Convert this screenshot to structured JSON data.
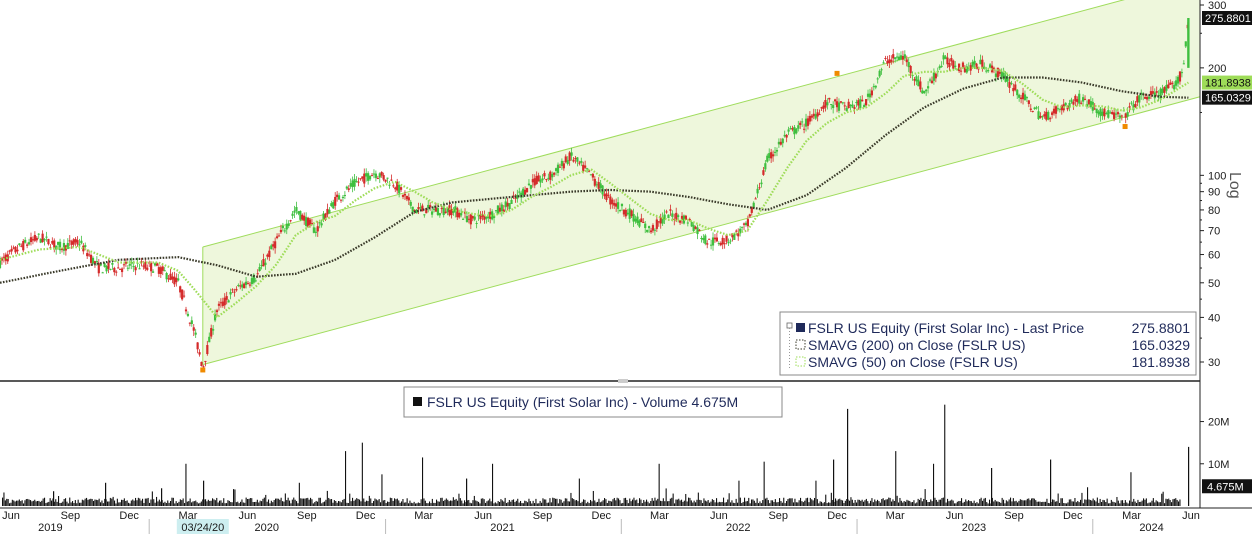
{
  "colors": {
    "channel_fill": "#eef7dc",
    "channel_line": "#9fdc5c",
    "up_candle": "#3fbf3f",
    "down_candle": "#d42a2a",
    "sma200": "#3a3a2a",
    "sma50": "#9edc58",
    "volume": "#111111",
    "axis": "#222222"
  },
  "scale_label": "Log",
  "price_badges": [
    {
      "value": "275.8801",
      "bg": "#111111",
      "fg": "#ffffff",
      "y": 275.8801
    },
    {
      "value": "181.8938",
      "bg": "#9edc58",
      "fg": "#111111",
      "y": 181.8938
    },
    {
      "value": "165.0329",
      "bg": "#111111",
      "fg": "#ffffff",
      "y": 165.0329
    }
  ],
  "volume_badge": {
    "value": "4.675M",
    "bg": "#111111",
    "fg": "#ffffff"
  },
  "highlight_date": "03/24/20",
  "legend": {
    "items": [
      {
        "label": "FSLR US Equity (First Solar Inc) - Last Price",
        "value": "275.8801"
      },
      {
        "label": "SMAVG (200)  on Close (FSLR US)",
        "value": "165.0329"
      },
      {
        "label": "SMAVG (50)  on Close (FSLR US)",
        "value": "181.8938"
      }
    ]
  },
  "volume_legend": {
    "label": "FSLR US Equity (First Solar Inc) - Volume 4.675M"
  },
  "chart_data": {
    "type": "candlestick",
    "scale": "log",
    "x_range": [
      "2019-05-15",
      "2024-06-15"
    ],
    "ylim": [
      27,
      300
    ],
    "price_ticks": [
      30,
      40,
      50,
      60,
      70,
      80,
      90,
      100,
      200,
      300
    ],
    "volume_ticks": [
      {
        "value": 10,
        "label": "10M"
      },
      {
        "value": 20,
        "label": "20M"
      }
    ],
    "volume_ylim": [
      0,
      27
    ],
    "month_ticks": [
      {
        "date": "2019-06-01",
        "label": "Jun"
      },
      {
        "date": "2019-09-01",
        "label": "Sep"
      },
      {
        "date": "2019-12-01",
        "label": "Dec"
      },
      {
        "date": "2020-03-01",
        "label": "Mar"
      },
      {
        "date": "2020-06-01",
        "label": "Jun"
      },
      {
        "date": "2020-09-01",
        "label": "Sep"
      },
      {
        "date": "2020-12-01",
        "label": "Dec"
      },
      {
        "date": "2021-03-01",
        "label": "Mar"
      },
      {
        "date": "2021-06-01",
        "label": "Jun"
      },
      {
        "date": "2021-09-01",
        "label": "Sep"
      },
      {
        "date": "2021-12-01",
        "label": "Dec"
      },
      {
        "date": "2022-03-01",
        "label": "Mar"
      },
      {
        "date": "2022-06-01",
        "label": "Jun"
      },
      {
        "date": "2022-09-01",
        "label": "Sep"
      },
      {
        "date": "2022-12-01",
        "label": "Dec"
      },
      {
        "date": "2023-03-01",
        "label": "Mar"
      },
      {
        "date": "2023-06-01",
        "label": "Jun"
      },
      {
        "date": "2023-09-01",
        "label": "Sep"
      },
      {
        "date": "2023-12-01",
        "label": "Dec"
      },
      {
        "date": "2024-03-01",
        "label": "Mar"
      },
      {
        "date": "2024-06-01",
        "label": "Jun"
      }
    ],
    "year_labels": [
      {
        "date": "2019-08-01",
        "label": "2019"
      },
      {
        "date": "2020-07-01",
        "label": "2020"
      },
      {
        "date": "2021-07-01",
        "label": "2021"
      },
      {
        "date": "2022-07-01",
        "label": "2022"
      },
      {
        "date": "2023-07-01",
        "label": "2023"
      },
      {
        "date": "2024-04-01",
        "label": "2024"
      }
    ],
    "year_dividers": [
      "2020-01-01",
      "2021-01-01",
      "2022-01-01",
      "2023-01-01",
      "2024-01-01"
    ],
    "price_path": [
      [
        "2019-05-15",
        57
      ],
      [
        "2019-06-15",
        63
      ],
      [
        "2019-07-15",
        67
      ],
      [
        "2019-08-15",
        63
      ],
      [
        "2019-09-15",
        65
      ],
      [
        "2019-10-15",
        55
      ],
      [
        "2019-11-15",
        55
      ],
      [
        "2019-12-15",
        56
      ],
      [
        "2020-01-15",
        55
      ],
      [
        "2020-02-15",
        50
      ],
      [
        "2020-03-10",
        37
      ],
      [
        "2020-03-24",
        29
      ],
      [
        "2020-04-15",
        42
      ],
      [
        "2020-05-15",
        48
      ],
      [
        "2020-06-15",
        52
      ],
      [
        "2020-07-15",
        65
      ],
      [
        "2020-08-15",
        80
      ],
      [
        "2020-09-15",
        70
      ],
      [
        "2020-10-15",
        85
      ],
      [
        "2020-11-15",
        95
      ],
      [
        "2020-12-15",
        102
      ],
      [
        "2021-01-15",
        95
      ],
      [
        "2021-02-15",
        80
      ],
      [
        "2021-03-15",
        80
      ],
      [
        "2021-04-15",
        80
      ],
      [
        "2021-05-15",
        75
      ],
      [
        "2021-06-15",
        78
      ],
      [
        "2021-07-15",
        84
      ],
      [
        "2021-08-15",
        95
      ],
      [
        "2021-09-15",
        100
      ],
      [
        "2021-10-15",
        113
      ],
      [
        "2021-11-15",
        100
      ],
      [
        "2021-12-15",
        85
      ],
      [
        "2022-01-15",
        78
      ],
      [
        "2022-02-15",
        70
      ],
      [
        "2022-03-15",
        78
      ],
      [
        "2022-04-15",
        75
      ],
      [
        "2022-05-15",
        65
      ],
      [
        "2022-06-15",
        66
      ],
      [
        "2022-07-15",
        72
      ],
      [
        "2022-08-15",
        110
      ],
      [
        "2022-09-15",
        130
      ],
      [
        "2022-10-15",
        140
      ],
      [
        "2022-11-15",
        160
      ],
      [
        "2022-12-15",
        155
      ],
      [
        "2023-01-15",
        160
      ],
      [
        "2023-02-15",
        210
      ],
      [
        "2023-03-15",
        215
      ],
      [
        "2023-04-15",
        170
      ],
      [
        "2023-05-15",
        210
      ],
      [
        "2023-06-15",
        200
      ],
      [
        "2023-07-15",
        205
      ],
      [
        "2023-08-15",
        190
      ],
      [
        "2023-09-15",
        165
      ],
      [
        "2023-10-15",
        145
      ],
      [
        "2023-11-15",
        155
      ],
      [
        "2023-12-15",
        165
      ],
      [
        "2024-01-15",
        150
      ],
      [
        "2024-02-15",
        145
      ],
      [
        "2024-03-15",
        165
      ],
      [
        "2024-04-15",
        170
      ],
      [
        "2024-05-10",
        180
      ],
      [
        "2024-05-20",
        200
      ],
      [
        "2024-05-28",
        275.88
      ]
    ],
    "sma50_path": [
      [
        "2019-05-15",
        58
      ],
      [
        "2019-07-15",
        62
      ],
      [
        "2019-09-15",
        63
      ],
      [
        "2019-11-15",
        57
      ],
      [
        "2020-01-15",
        57
      ],
      [
        "2020-02-15",
        54
      ],
      [
        "2020-03-15",
        47
      ],
      [
        "2020-04-15",
        40
      ],
      [
        "2020-05-15",
        44
      ],
      [
        "2020-06-15",
        49
      ],
      [
        "2020-07-15",
        56
      ],
      [
        "2020-08-15",
        68
      ],
      [
        "2020-09-15",
        74
      ],
      [
        "2020-10-15",
        77
      ],
      [
        "2020-11-15",
        85
      ],
      [
        "2020-12-15",
        92
      ],
      [
        "2021-01-15",
        96
      ],
      [
        "2021-02-15",
        90
      ],
      [
        "2021-03-15",
        84
      ],
      [
        "2021-04-15",
        80
      ],
      [
        "2021-05-15",
        78
      ],
      [
        "2021-06-15",
        77
      ],
      [
        "2021-07-15",
        80
      ],
      [
        "2021-08-15",
        87
      ],
      [
        "2021-09-15",
        93
      ],
      [
        "2021-10-15",
        100
      ],
      [
        "2021-11-15",
        104
      ],
      [
        "2021-12-15",
        95
      ],
      [
        "2022-01-15",
        86
      ],
      [
        "2022-02-15",
        78
      ],
      [
        "2022-03-15",
        75
      ],
      [
        "2022-04-15",
        75
      ],
      [
        "2022-05-15",
        71
      ],
      [
        "2022-06-15",
        68
      ],
      [
        "2022-07-15",
        70
      ],
      [
        "2022-08-15",
        85
      ],
      [
        "2022-09-15",
        105
      ],
      [
        "2022-10-15",
        125
      ],
      [
        "2022-11-15",
        140
      ],
      [
        "2022-12-15",
        150
      ],
      [
        "2023-01-15",
        155
      ],
      [
        "2023-02-15",
        170
      ],
      [
        "2023-03-15",
        190
      ],
      [
        "2023-04-15",
        195
      ],
      [
        "2023-05-15",
        195
      ],
      [
        "2023-06-15",
        200
      ],
      [
        "2023-07-15",
        200
      ],
      [
        "2023-08-15",
        196
      ],
      [
        "2023-09-15",
        180
      ],
      [
        "2023-10-15",
        163
      ],
      [
        "2023-11-15",
        155
      ],
      [
        "2023-12-15",
        157
      ],
      [
        "2024-01-15",
        156
      ],
      [
        "2024-02-15",
        152
      ],
      [
        "2024-03-15",
        155
      ],
      [
        "2024-04-15",
        163
      ],
      [
        "2024-05-28",
        181.89
      ]
    ],
    "sma200_path": [
      [
        "2019-05-15",
        50
      ],
      [
        "2019-08-15",
        54
      ],
      [
        "2019-11-15",
        58
      ],
      [
        "2020-02-15",
        59
      ],
      [
        "2020-04-15",
        56
      ],
      [
        "2020-06-15",
        52
      ],
      [
        "2020-08-15",
        53
      ],
      [
        "2020-10-15",
        58
      ],
      [
        "2020-12-15",
        67
      ],
      [
        "2021-02-15",
        79
      ],
      [
        "2021-04-15",
        84
      ],
      [
        "2021-06-15",
        86
      ],
      [
        "2021-08-15",
        88
      ],
      [
        "2021-10-15",
        90
      ],
      [
        "2021-12-15",
        91
      ],
      [
        "2022-02-15",
        90
      ],
      [
        "2022-04-15",
        87
      ],
      [
        "2022-06-15",
        83
      ],
      [
        "2022-08-15",
        80
      ],
      [
        "2022-10-15",
        88
      ],
      [
        "2022-12-15",
        105
      ],
      [
        "2023-02-15",
        130
      ],
      [
        "2023-04-15",
        155
      ],
      [
        "2023-06-15",
        175
      ],
      [
        "2023-08-15",
        188
      ],
      [
        "2023-10-15",
        188
      ],
      [
        "2023-12-15",
        182
      ],
      [
        "2024-02-15",
        172
      ],
      [
        "2024-04-15",
        166
      ],
      [
        "2024-05-28",
        165.03
      ]
    ],
    "channel": {
      "lower": [
        [
          "2020-03-24",
          29.5
        ],
        [
          "2024-06-15",
          166
        ]
      ],
      "upper": [
        [
          "2020-03-24",
          63
        ],
        [
          "2024-06-15",
          354
        ]
      ]
    },
    "volume_spikes": [
      [
        "2019-05-20",
        3.2
      ],
      [
        "2019-08-05",
        3.5
      ],
      [
        "2019-10-25",
        5.5
      ],
      [
        "2020-01-20",
        4.2
      ],
      [
        "2020-02-25",
        10.0
      ],
      [
        "2020-03-24",
        6.0
      ],
      [
        "2020-08-20",
        5.5
      ],
      [
        "2020-10-30",
        13.0
      ],
      [
        "2020-11-25",
        15.0
      ],
      [
        "2020-12-25",
        7.5
      ],
      [
        "2021-02-26",
        11.5
      ],
      [
        "2021-05-05",
        6.5
      ],
      [
        "2021-06-15",
        10.0
      ],
      [
        "2021-10-28",
        6.5
      ],
      [
        "2022-03-01",
        10.0
      ],
      [
        "2022-06-30",
        6.0
      ],
      [
        "2022-08-10",
        10.5
      ],
      [
        "2022-10-28",
        6.0
      ],
      [
        "2022-11-25",
        11.0
      ],
      [
        "2022-12-16",
        23.0
      ],
      [
        "2023-02-28",
        13.0
      ],
      [
        "2023-04-28",
        10.0
      ],
      [
        "2023-05-15",
        24.0
      ],
      [
        "2023-07-28",
        9.0
      ],
      [
        "2023-10-27",
        11.0
      ],
      [
        "2024-02-27",
        8.0
      ],
      [
        "2024-05-28",
        14.0
      ]
    ],
    "volume_last": 4.675
  }
}
